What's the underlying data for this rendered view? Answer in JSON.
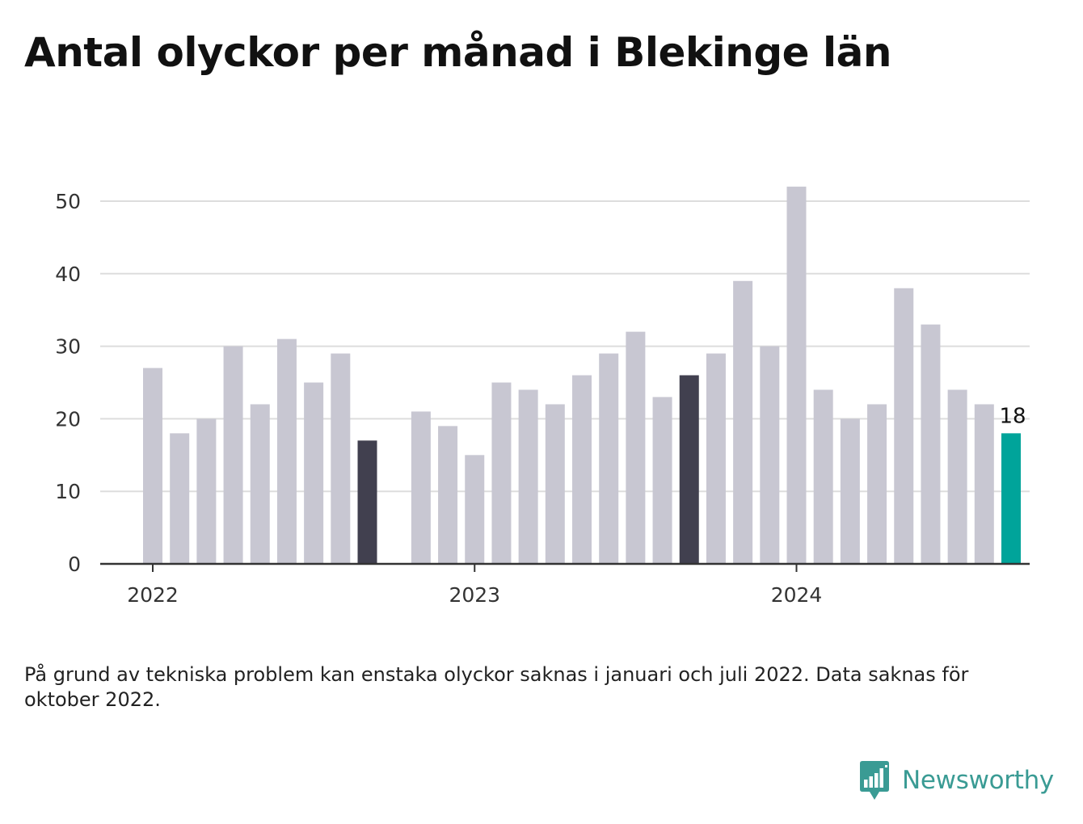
{
  "title": "Antal olyckor per månad i Blekinge län",
  "note": "På grund av tekniska problem kan enstaka olyckor saknas i januari och juli 2022. Data saknas för oktober 2022.",
  "brand": {
    "name": "Newsworthy",
    "logo_icon": "newsworthy-chart-bubble-icon",
    "color": "#3a9b94"
  },
  "colors": {
    "default": "#c8c7d2",
    "september": "#41404f",
    "latest": "#00a49a",
    "grid": "#dddddd",
    "baseline": "#333333"
  },
  "chart_data": {
    "type": "bar",
    "title": "Antal olyckor per månad i Blekinge län",
    "xlabel": "",
    "ylabel": "",
    "ylim": [
      0,
      55
    ],
    "yticks": [
      0,
      10,
      20,
      30,
      40,
      50
    ],
    "grid": true,
    "x_year_labels": [
      {
        "label": "2022",
        "date": "2022-01"
      },
      {
        "label": "2023",
        "date": "2023-01"
      },
      {
        "label": "2024",
        "date": "2024-01"
      }
    ],
    "categories": [
      "2022-01",
      "2022-02",
      "2022-03",
      "2022-04",
      "2022-05",
      "2022-06",
      "2022-07",
      "2022-08",
      "2022-09",
      "2022-10",
      "2022-11",
      "2022-12",
      "2023-01",
      "2023-02",
      "2023-03",
      "2023-04",
      "2023-05",
      "2023-06",
      "2023-07",
      "2023-08",
      "2023-09",
      "2023-10",
      "2023-11",
      "2023-12",
      "2024-01",
      "2024-02",
      "2024-03",
      "2024-04",
      "2024-05",
      "2024-06",
      "2024-07",
      "2024-08",
      "2024-09"
    ],
    "values": [
      27,
      18,
      20,
      30,
      22,
      31,
      25,
      29,
      17,
      null,
      21,
      19,
      15,
      25,
      24,
      22,
      26,
      29,
      32,
      23,
      26,
      29,
      39,
      30,
      52,
      24,
      20,
      22,
      38,
      33,
      24,
      22,
      18
    ],
    "highlight": [
      "2022-09",
      "2023-09"
    ],
    "latest": "2024-09",
    "data_labels": [
      {
        "date": "2024-09",
        "text": "18"
      }
    ]
  }
}
